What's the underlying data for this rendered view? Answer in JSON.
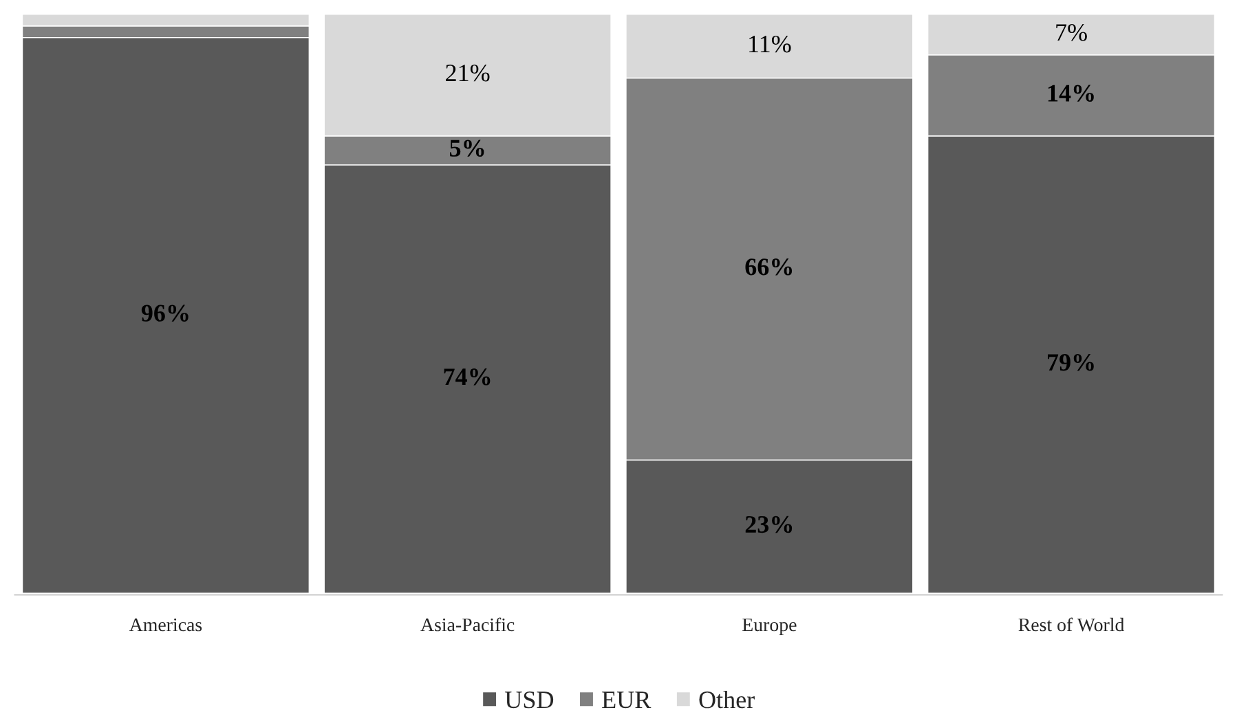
{
  "chart_data": {
    "type": "bar",
    "stacked": true,
    "categories": [
      "Americas",
      "Asia-Pacific",
      "Europe",
      "Rest of World"
    ],
    "series": [
      {
        "name": "USD",
        "color": "#595959",
        "values": [
          96,
          74,
          23,
          79
        ],
        "value_labels": [
          "96%",
          "74%",
          "23%",
          "79%"
        ]
      },
      {
        "name": "EUR",
        "color": "#808080",
        "values": [
          2,
          5,
          66,
          14
        ],
        "value_labels": [
          null,
          "5%",
          "66%",
          "14%"
        ]
      },
      {
        "name": "Other",
        "color": "#d9d9d9",
        "values": [
          2,
          21,
          11,
          7
        ],
        "value_labels": [
          null,
          "21%",
          "11%",
          "7%"
        ]
      }
    ],
    "legend": "bottom"
  }
}
